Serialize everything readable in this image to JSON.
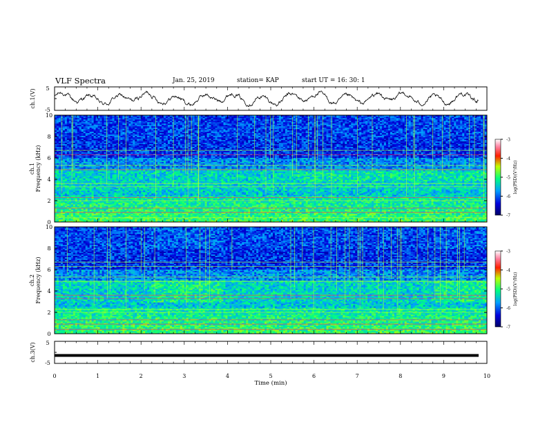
{
  "header": {
    "title": "VLF Spectra",
    "date": "Jan. 25, 2019",
    "station": "station= KAP",
    "start": "start  UT  =   16: 30: 1"
  },
  "chart_data": [
    {
      "type": "line",
      "panel": "ch1-waveform",
      "ylabel": "ch.1(V)",
      "ylim": [
        -5,
        5
      ],
      "yticks": [
        "5",
        "-5"
      ],
      "xlim": [
        0,
        10
      ],
      "description_values": {
        "approx_mean": 0,
        "approx_amplitude": 2.5
      }
    },
    {
      "type": "heatmap",
      "panel": "ch1-spectrogram",
      "ylabel": "ch.1\nFrequency  (kHz)",
      "ylim": [
        0,
        10
      ],
      "yticks": [
        "0",
        "2",
        "4",
        "6",
        "8",
        "10"
      ],
      "xlim": [
        0,
        10
      ],
      "colorbar": {
        "label": "log(PSD)(V²/Hz)",
        "range": [
          -7,
          -3
        ],
        "ticks": [
          "-3",
          "-4",
          "-5",
          "-6",
          "-7"
        ]
      }
    },
    {
      "type": "heatmap",
      "panel": "ch2-spectrogram",
      "ylabel": "ch.2\nFrequency  (kHz)",
      "ylim": [
        0,
        10
      ],
      "yticks": [
        "0",
        "2",
        "4",
        "6",
        "8",
        "10"
      ],
      "xlim": [
        0,
        10
      ],
      "colorbar": {
        "label": "log(PSD)(V²/Hz)",
        "range": [
          -7,
          -3
        ],
        "ticks": [
          "-3",
          "-4",
          "-5",
          "-6",
          "-7"
        ]
      }
    },
    {
      "type": "line",
      "panel": "ch3-waveform",
      "ylabel": "ch.3(V)",
      "ylim": [
        -5,
        5
      ],
      "yticks": [
        "5",
        "-5"
      ],
      "xlim": [
        0,
        10
      ],
      "description_values": {
        "approx_constant": -1.4
      }
    }
  ],
  "xaxis": {
    "label": "Time  (min)",
    "ticks": [
      "0",
      "1",
      "2",
      "3",
      "4",
      "5",
      "6",
      "7",
      "8",
      "9",
      "10"
    ]
  }
}
